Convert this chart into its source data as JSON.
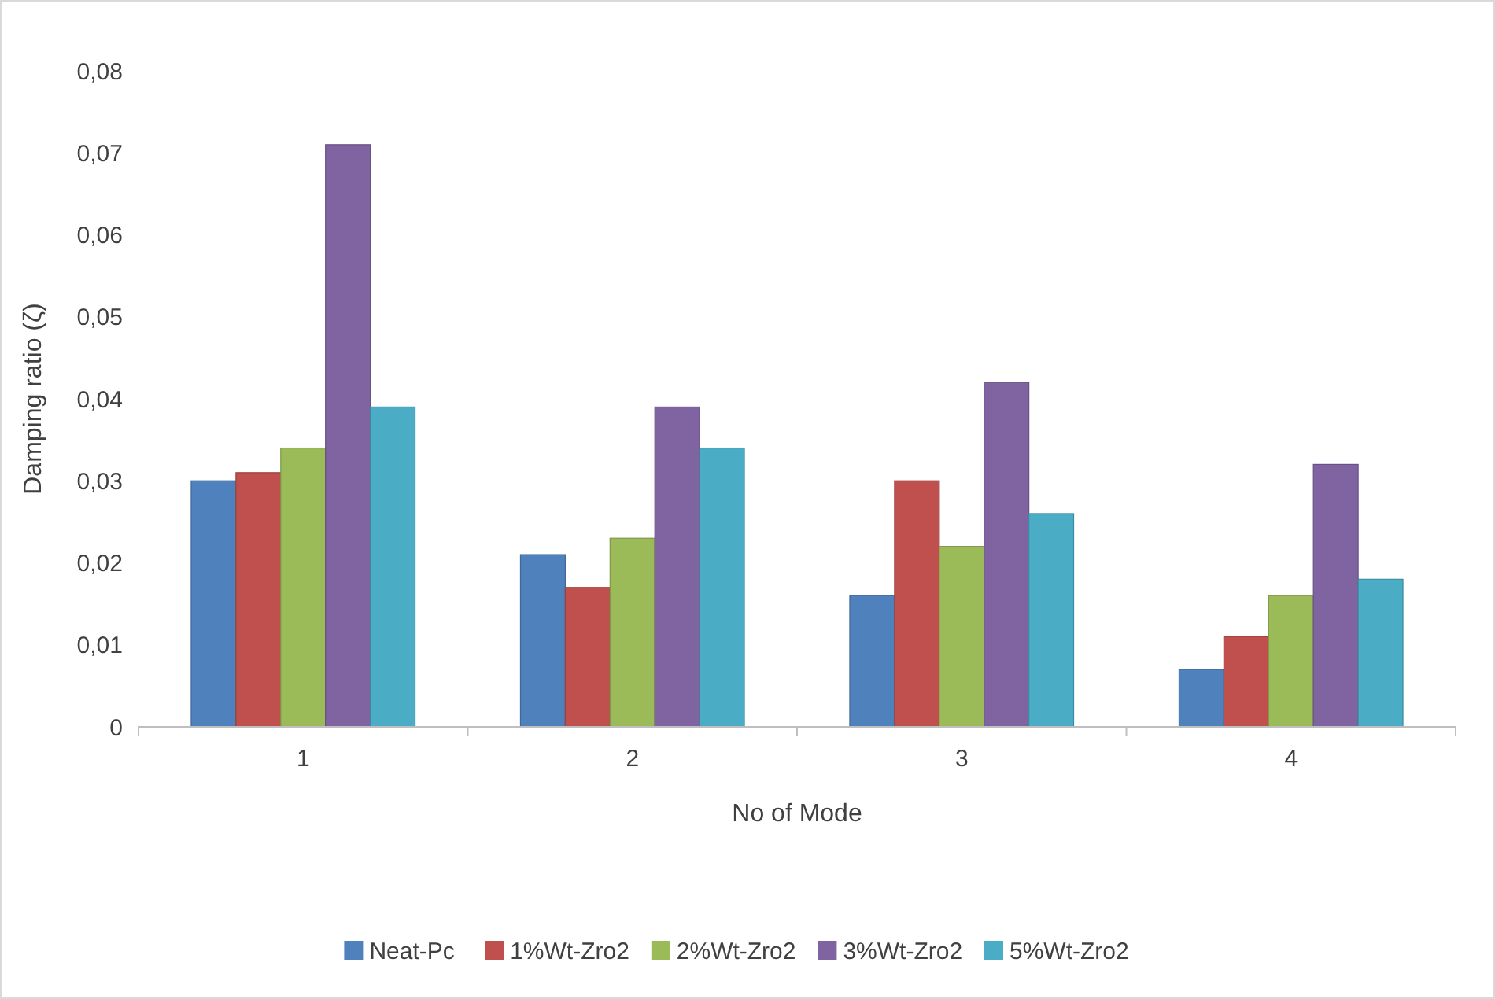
{
  "chart_data": {
    "type": "bar",
    "xlabel": "No of Mode",
    "ylabel": "Damping ratio (ζ)",
    "categories": [
      "1",
      "2",
      "3",
      "4"
    ],
    "series": [
      {
        "name": "Neat-Pc",
        "color": "#4f81bd",
        "values": [
          0.03,
          0.021,
          0.016,
          0.007
        ]
      },
      {
        "name": "1%Wt-Zro2",
        "color": "#c0504d",
        "values": [
          0.031,
          0.017,
          0.03,
          0.011
        ]
      },
      {
        "name": "2%Wt-Zro2",
        "color": "#9bbb59",
        "values": [
          0.034,
          0.023,
          0.022,
          0.016
        ]
      },
      {
        "name": "3%Wt-Zro2",
        "color": "#8064a2",
        "values": [
          0.071,
          0.039,
          0.042,
          0.032
        ]
      },
      {
        "name": "5%Wt-Zro2",
        "color": "#4bacc6",
        "values": [
          0.039,
          0.034,
          0.026,
          0.018
        ]
      }
    ],
    "ylim": [
      0,
      0.08
    ],
    "yticks": [
      0,
      {
        "value": 0.01,
        "label": "0,01"
      },
      {
        "value": 0.02,
        "label": "0,02"
      },
      {
        "value": 0.03,
        "label": "0,03"
      },
      {
        "value": 0.04,
        "label": "0,04"
      },
      {
        "value": 0.05,
        "label": "0,05"
      },
      {
        "value": 0.06,
        "label": "0,06"
      },
      {
        "value": 0.07,
        "label": "0,07"
      },
      {
        "value": 0.08,
        "label": "0,08"
      }
    ],
    "grid": false,
    "legend": "bottom"
  }
}
